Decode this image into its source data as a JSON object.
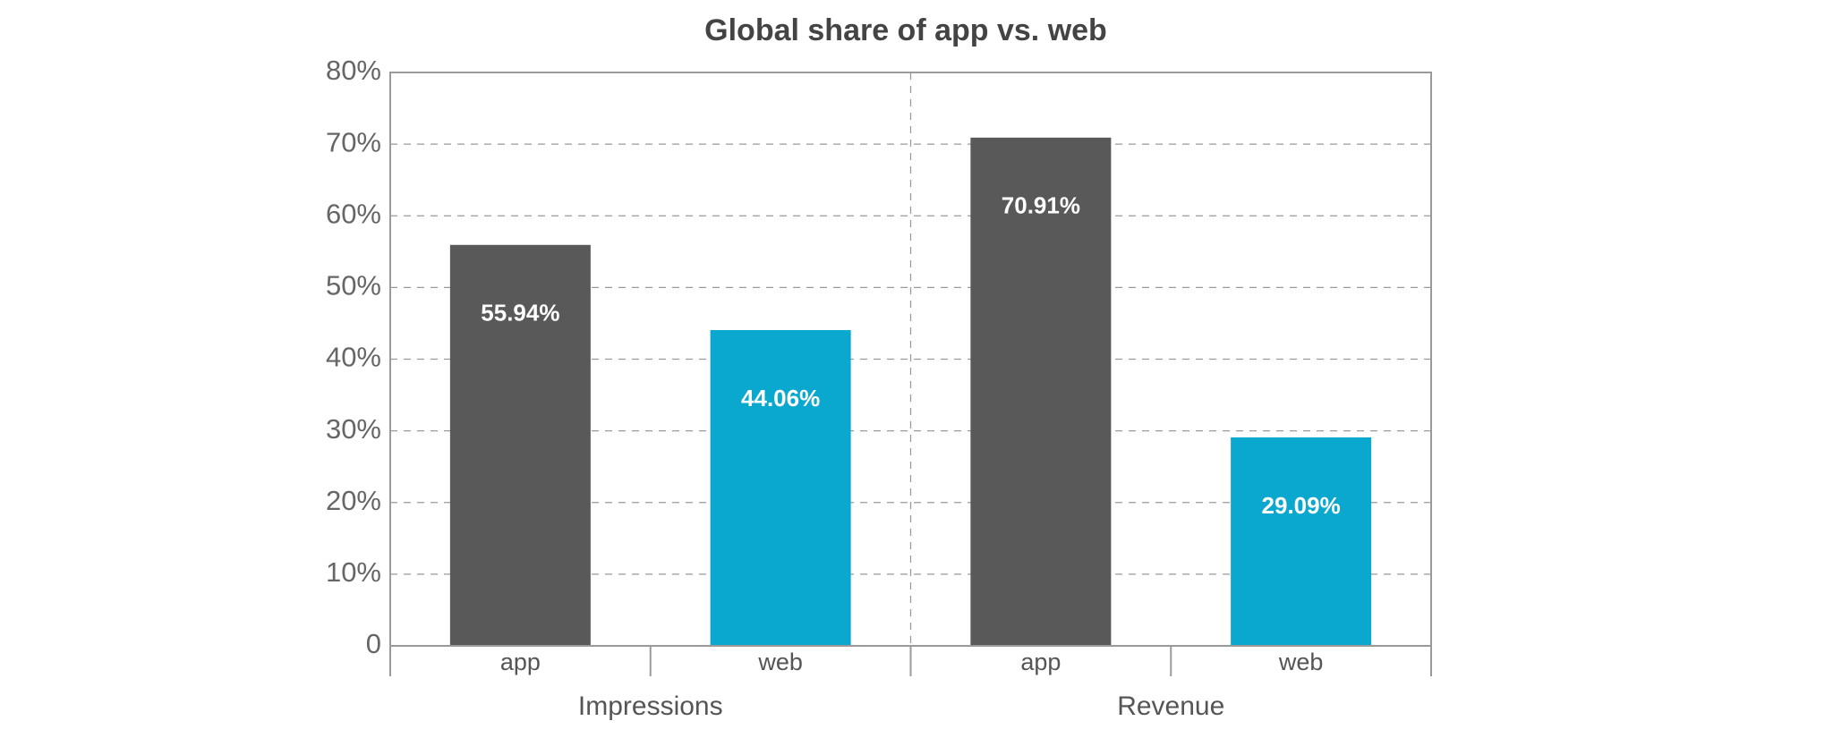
{
  "chart_data": {
    "type": "bar",
    "title": "Global share of app vs. web",
    "groups": [
      "Impressions",
      "Revenue"
    ],
    "categories": [
      "app",
      "web",
      "app",
      "web"
    ],
    "values": [
      55.94,
      44.06,
      70.91,
      29.09
    ],
    "value_labels": [
      "55.94%",
      "44.06%",
      "70.91%",
      "29.09%"
    ],
    "colors": [
      "#595959",
      "#0aa8cf",
      "#595959",
      "#0aa8cf"
    ],
    "ylim": [
      0,
      80
    ],
    "yticks": [
      0,
      {
        "value": 10,
        "label": "10%"
      },
      {
        "value": 20,
        "label": "20%"
      },
      {
        "value": 30,
        "label": "30%"
      },
      {
        "value": 40,
        "label": "40%"
      },
      {
        "value": 50,
        "label": "50%"
      },
      {
        "value": 60,
        "label": "60%"
      },
      {
        "value": 70,
        "label": "70%"
      },
      {
        "value": 80,
        "label": "80%"
      }
    ],
    "grid": true
  }
}
